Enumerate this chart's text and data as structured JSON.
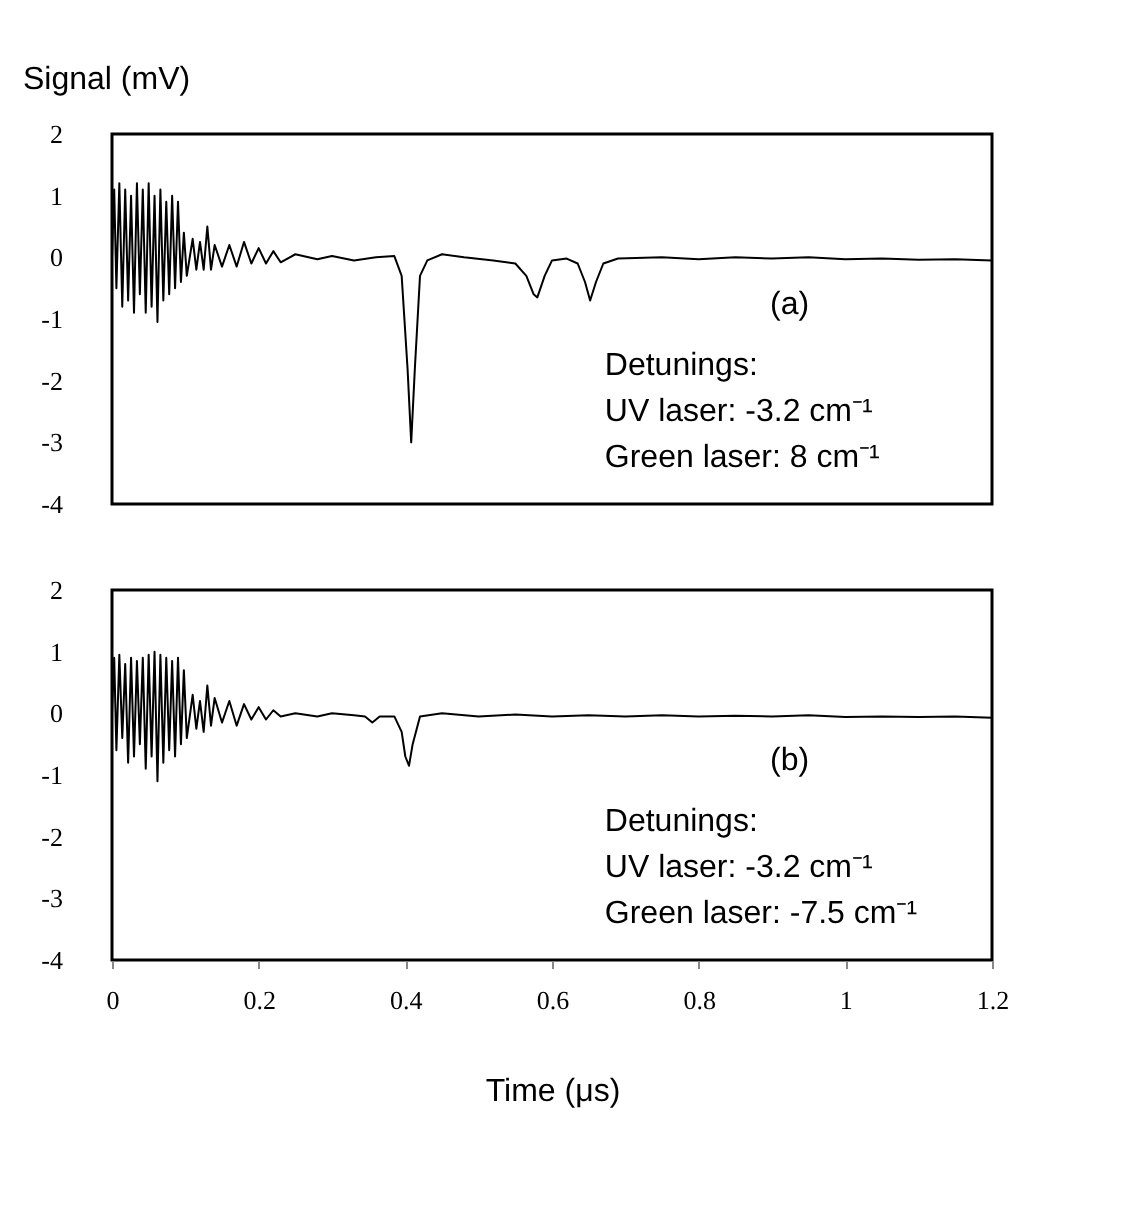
{
  "chart_data": [
    {
      "type": "line",
      "ylabel": "Signal (mV)",
      "xlim": [
        0,
        1.2
      ],
      "ylim": [
        -4,
        2
      ],
      "yticks": [
        -4,
        -3,
        -2,
        -1,
        0,
        1,
        2
      ],
      "xticks": [
        0,
        0.2,
        0.4,
        0.6,
        0.8,
        1,
        1.2
      ],
      "tick_labels": "y",
      "grid": false,
      "color": "#000000",
      "annotations": [
        "(a)",
        "Detunings:",
        "UV laser: -3.2 cm⁻¹",
        "Green laser: 8 cm⁻¹"
      ],
      "x": [
        0,
        0.003,
        0.006,
        0.01,
        0.014,
        0.018,
        0.022,
        0.026,
        0.03,
        0.034,
        0.038,
        0.042,
        0.046,
        0.05,
        0.054,
        0.058,
        0.062,
        0.066,
        0.07,
        0.074,
        0.078,
        0.082,
        0.086,
        0.09,
        0.094,
        0.098,
        0.102,
        0.11,
        0.115,
        0.12,
        0.125,
        0.13,
        0.135,
        0.14,
        0.15,
        0.16,
        0.17,
        0.18,
        0.19,
        0.2,
        0.21,
        0.22,
        0.23,
        0.25,
        0.28,
        0.3,
        0.33,
        0.36,
        0.385,
        0.395,
        0.403,
        0.408,
        0.413,
        0.42,
        0.43,
        0.45,
        0.48,
        0.52,
        0.55,
        0.565,
        0.575,
        0.58,
        0.59,
        0.6,
        0.62,
        0.635,
        0.645,
        0.652,
        0.66,
        0.67,
        0.69,
        0.75,
        0.8,
        0.85,
        0.9,
        0.95,
        1.0,
        1.05,
        1.1,
        1.15,
        1.2
      ],
      "values": [
        0,
        1.1,
        -0.5,
        1.2,
        -0.8,
        1.1,
        -0.7,
        1.0,
        -0.9,
        1.2,
        -0.6,
        1.1,
        -0.9,
        1.2,
        -0.8,
        1.0,
        -1.05,
        1.1,
        -0.7,
        0.9,
        -0.6,
        1.0,
        -0.5,
        0.9,
        -0.4,
        0.4,
        -0.3,
        0.3,
        -0.2,
        0.25,
        -0.2,
        0.5,
        -0.2,
        0.2,
        -0.15,
        0.2,
        -0.15,
        0.25,
        -0.1,
        0.15,
        -0.1,
        0.1,
        -0.08,
        0.05,
        -0.03,
        0.02,
        -0.05,
        0.0,
        0.02,
        -0.3,
        -1.8,
        -3.0,
        -1.8,
        -0.3,
        -0.05,
        0.05,
        0.0,
        -0.05,
        -0.1,
        -0.3,
        -0.6,
        -0.65,
        -0.3,
        -0.05,
        -0.02,
        -0.1,
        -0.4,
        -0.7,
        -0.4,
        -0.1,
        -0.02,
        0.0,
        -0.03,
        0.0,
        -0.02,
        0.0,
        -0.03,
        -0.02,
        -0.04,
        -0.03,
        -0.05
      ]
    },
    {
      "type": "line",
      "xlabel": "Time (μs)",
      "xlim": [
        0,
        1.2
      ],
      "ylim": [
        -4,
        2
      ],
      "yticks": [
        -4,
        -3,
        -2,
        -1,
        0,
        1,
        2
      ],
      "xticks": [
        0,
        0.2,
        0.4,
        0.6,
        0.8,
        1,
        1.2
      ],
      "grid": false,
      "color": "#000000",
      "annotations": [
        "(b)",
        "Detunings:",
        "UV laser: -3.2 cm⁻¹",
        "Green laser: -7.5 cm⁻¹"
      ],
      "x": [
        0,
        0.003,
        0.006,
        0.01,
        0.014,
        0.018,
        0.022,
        0.026,
        0.03,
        0.034,
        0.038,
        0.042,
        0.046,
        0.05,
        0.054,
        0.058,
        0.062,
        0.066,
        0.07,
        0.074,
        0.078,
        0.082,
        0.086,
        0.09,
        0.094,
        0.098,
        0.102,
        0.11,
        0.115,
        0.12,
        0.125,
        0.13,
        0.135,
        0.14,
        0.15,
        0.16,
        0.17,
        0.18,
        0.19,
        0.2,
        0.21,
        0.22,
        0.23,
        0.25,
        0.28,
        0.3,
        0.33,
        0.345,
        0.355,
        0.365,
        0.385,
        0.395,
        0.4,
        0.405,
        0.41,
        0.42,
        0.45,
        0.5,
        0.55,
        0.6,
        0.65,
        0.7,
        0.75,
        0.8,
        0.85,
        0.9,
        0.95,
        1.0,
        1.05,
        1.1,
        1.15,
        1.2
      ],
      "values": [
        0,
        0.9,
        -0.6,
        0.95,
        -0.4,
        0.8,
        -0.8,
        0.9,
        -0.7,
        0.85,
        -0.5,
        0.9,
        -0.9,
        0.95,
        -0.7,
        1.0,
        -1.1,
        0.95,
        -0.8,
        0.9,
        -0.6,
        0.85,
        -0.7,
        0.9,
        -0.5,
        0.7,
        -0.4,
        0.3,
        -0.25,
        0.2,
        -0.3,
        0.45,
        -0.2,
        0.25,
        -0.15,
        0.2,
        -0.2,
        0.15,
        -0.1,
        0.1,
        -0.1,
        0.05,
        -0.05,
        0.0,
        -0.05,
        0.0,
        -0.03,
        -0.05,
        -0.15,
        -0.05,
        -0.05,
        -0.3,
        -0.7,
        -0.85,
        -0.5,
        -0.05,
        0.0,
        -0.05,
        -0.02,
        -0.05,
        -0.03,
        -0.05,
        -0.03,
        -0.05,
        -0.04,
        -0.05,
        -0.03,
        -0.06,
        -0.05,
        -0.06,
        -0.05,
        -0.07
      ]
    }
  ]
}
